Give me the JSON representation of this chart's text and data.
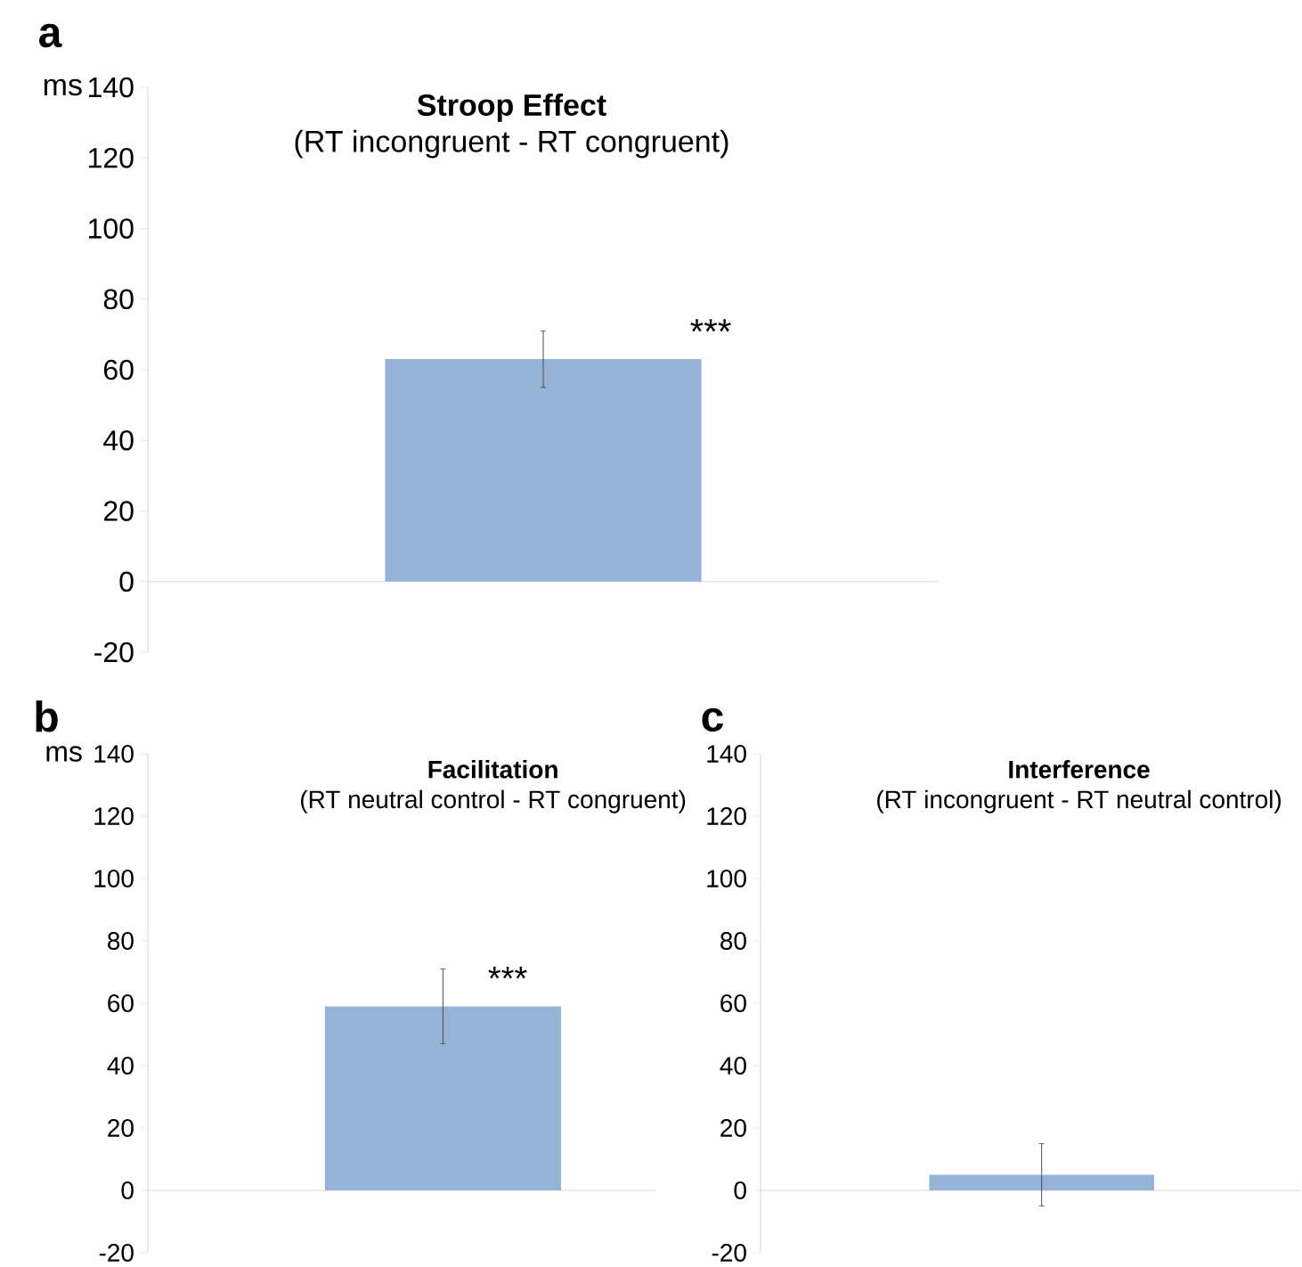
{
  "chart_data": [
    {
      "type": "bar",
      "title": "Stroop Effect",
      "subtitle": "(RT incongruent - RT congruent)",
      "ylabel": "ms",
      "categories": [
        null
      ],
      "values": [
        63
      ],
      "errors": [
        8
      ],
      "color": "#95b3d7",
      "ylim": [
        -20,
        140
      ],
      "yticks": [
        -20,
        0,
        20,
        40,
        60,
        80,
        100,
        120,
        140
      ],
      "annotations": [
        "a",
        "***"
      ]
    },
    {
      "type": "bar",
      "title": "Facilitation",
      "subtitle": "(RT neutral control - RT congruent)",
      "ylabel": "ms",
      "categories": [
        null
      ],
      "values": [
        59
      ],
      "errors": [
        12
      ],
      "color": "#95b3d7",
      "ylim": [
        -20,
        140
      ],
      "yticks": [
        -20,
        0,
        20,
        40,
        60,
        80,
        100,
        120,
        140
      ],
      "annotations": [
        "b",
        "***"
      ]
    },
    {
      "type": "bar",
      "title": "Interference",
      "subtitle": "(RT incongruent - RT neutral control)",
      "categories": [
        null
      ],
      "values": [
        5
      ],
      "errors": [
        10
      ],
      "color": "#95b3d7",
      "ylim": [
        -20,
        140
      ],
      "yticks": [
        -20,
        0,
        20,
        40,
        60,
        80,
        100,
        120,
        140
      ],
      "annotations": [
        "c"
      ]
    }
  ]
}
